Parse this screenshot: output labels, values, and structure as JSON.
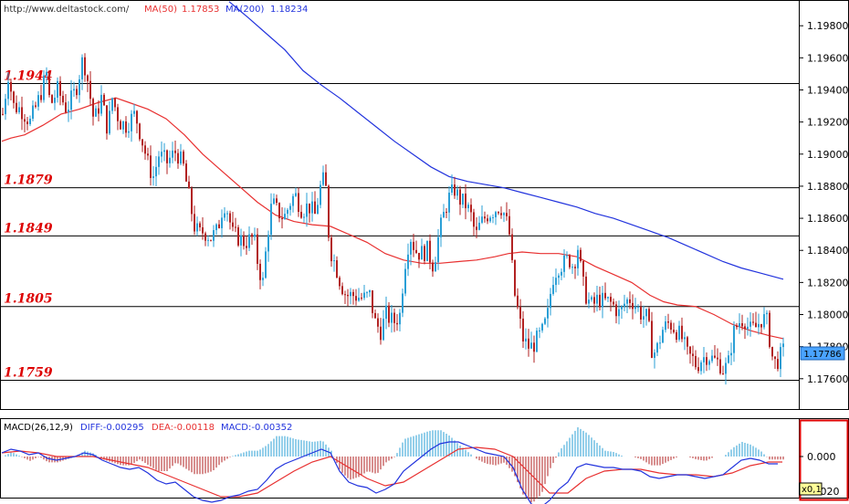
{
  "header": {
    "url": "http://www.deltastock.com/",
    "ma50_label": "MA(50)",
    "ma50_value": "1.17853",
    "ma200_label": "MA(200)",
    "ma200_value": "1.18234"
  },
  "macd_header": {
    "label": "MACD(26,12,9)",
    "diff": "DIFF:-0.00295",
    "dea": "DEA:-0.00118",
    "macd": "MACD:-0.00352"
  },
  "price_axis": {
    "ticks": [
      "1.19800",
      "1.19600",
      "1.19400",
      "1.19200",
      "1.19000",
      "1.18800",
      "1.18600",
      "1.18400",
      "1.18200",
      "1.18000",
      "1.17800",
      "1.17600"
    ],
    "current_price": "1.17786"
  },
  "macd_axis": {
    "ticks": [
      "0.000",
      "-0.020"
    ],
    "corner_label": "x0,1"
  },
  "colors": {
    "bull": "#2a9fd6",
    "bear": "#b22222",
    "ma50": "#e83030",
    "ma200": "#2233dd",
    "level_text": "#dd0000",
    "macd_bar_up": "#2a9fd6",
    "macd_bar_down": "#b22222",
    "diff_line": "#2233dd",
    "dea_line": "#e83030",
    "panel_highlight": "#dd0000"
  },
  "chart_data": {
    "type": "candlestick",
    "ylim": [
      1.1743,
      1.1995
    ],
    "yticks": [
      1.198,
      1.196,
      1.194,
      1.192,
      1.19,
      1.188,
      1.186,
      1.184,
      1.182,
      1.18,
      1.178,
      1.176
    ],
    "current_price": 1.17786,
    "levels": [
      {
        "label": "1.1944",
        "value": 1.1944
      },
      {
        "label": "1.1879",
        "value": 1.1879
      },
      {
        "label": "1.1849",
        "value": 1.1849
      },
      {
        "label": "1.1805",
        "value": 1.1805
      },
      {
        "label": "1.1759",
        "value": 1.1759
      }
    ],
    "close_path": [
      [
        0,
        1.1925
      ],
      [
        6,
        1.195
      ],
      [
        12,
        1.193
      ],
      [
        20,
        1.1928
      ],
      [
        30,
        1.192
      ],
      [
        40,
        1.1935
      ],
      [
        48,
        1.195
      ],
      [
        52,
        1.193
      ],
      [
        60,
        1.194
      ],
      [
        70,
        1.1928
      ],
      [
        80,
        1.194
      ],
      [
        88,
        1.196
      ],
      [
        92,
        1.195
      ],
      [
        100,
        1.192
      ],
      [
        108,
        1.1935
      ],
      [
        115,
        1.1915
      ],
      [
        120,
        1.1935
      ],
      [
        128,
        1.192
      ],
      [
        135,
        1.1918
      ],
      [
        145,
        1.1925
      ],
      [
        152,
        1.191
      ],
      [
        160,
        1.1892
      ],
      [
        166,
        1.1885
      ],
      [
        170,
        1.19
      ],
      [
        180,
        1.1895
      ],
      [
        190,
        1.1902
      ],
      [
        198,
        1.1892
      ],
      [
        205,
        1.187
      ],
      [
        210,
        1.1855
      ],
      [
        215,
        1.185
      ],
      [
        220,
        1.1852
      ],
      [
        228,
        1.1848
      ],
      [
        235,
        1.1852
      ],
      [
        242,
        1.187
      ],
      [
        246,
        1.1865
      ],
      [
        252,
        1.185
      ],
      [
        258,
        1.1848
      ],
      [
        265,
        1.1845
      ],
      [
        275,
        1.1848
      ],
      [
        280,
        1.183
      ],
      [
        285,
        1.182
      ],
      [
        290,
        1.185
      ],
      [
        295,
        1.187
      ],
      [
        300,
        1.1865
      ],
      [
        308,
        1.186
      ],
      [
        315,
        1.187
      ],
      [
        320,
        1.1875
      ],
      [
        328,
        1.1865
      ],
      [
        335,
        1.1868
      ],
      [
        342,
        1.1862
      ],
      [
        350,
        1.1885
      ],
      [
        354,
        1.1878
      ],
      [
        358,
        1.1842
      ],
      [
        365,
        1.183
      ],
      [
        370,
        1.182
      ],
      [
        376,
        1.1812
      ],
      [
        385,
        1.1812
      ],
      [
        395,
        1.181
      ],
      [
        402,
        1.1812
      ],
      [
        408,
        1.1795
      ],
      [
        414,
        1.179
      ],
      [
        420,
        1.18
      ],
      [
        428,
        1.1795
      ],
      [
        435,
        1.18
      ],
      [
        440,
        1.183
      ],
      [
        446,
        1.185
      ],
      [
        452,
        1.184
      ],
      [
        458,
        1.1838
      ],
      [
        465,
        1.184
      ],
      [
        472,
        1.183
      ],
      [
        476,
        1.1845
      ],
      [
        482,
        1.186
      ],
      [
        488,
        1.1872
      ],
      [
        495,
        1.1878
      ],
      [
        500,
        1.1872
      ],
      [
        508,
        1.1868
      ],
      [
        514,
        1.186
      ],
      [
        518,
        1.1848
      ],
      [
        522,
        1.1855
      ],
      [
        530,
        1.1862
      ],
      [
        538,
        1.1865
      ],
      [
        545,
        1.1868
      ],
      [
        550,
        1.1862
      ],
      [
        555,
        1.185
      ],
      [
        560,
        1.1815
      ],
      [
        565,
        1.18
      ],
      [
        570,
        1.1785
      ],
      [
        575,
        1.178
      ],
      [
        580,
        1.178
      ],
      [
        586,
        1.1785
      ],
      [
        592,
        1.179
      ],
      [
        597,
        1.18
      ],
      [
        602,
        1.1822
      ],
      [
        608,
        1.183
      ],
      [
        615,
        1.1832
      ],
      [
        620,
        1.1835
      ],
      [
        625,
        1.183
      ],
      [
        630,
        1.1842
      ],
      [
        635,
        1.182
      ],
      [
        640,
        1.181
      ],
      [
        646,
        1.1805
      ],
      [
        652,
        1.181
      ],
      [
        658,
        1.1808
      ],
      [
        664,
        1.1808
      ],
      [
        670,
        1.1805
      ],
      [
        676,
        1.18
      ],
      [
        682,
        1.1808
      ],
      [
        688,
        1.181
      ],
      [
        694,
        1.1805
      ],
      [
        700,
        1.18
      ],
      [
        706,
        1.1798
      ],
      [
        712,
        1.1775
      ],
      [
        718,
        1.178
      ],
      [
        722,
        1.179
      ],
      [
        730,
        1.1795
      ],
      [
        738,
        1.179
      ],
      [
        744,
        1.1785
      ],
      [
        750,
        1.1775
      ],
      [
        756,
        1.1772
      ],
      [
        760,
        1.1768
      ],
      [
        765,
        1.1772
      ],
      [
        772,
        1.1775
      ],
      [
        778,
        1.1772
      ],
      [
        785,
        1.177
      ],
      [
        790,
        1.1765
      ],
      [
        795,
        1.177
      ],
      [
        800,
        1.1788
      ],
      [
        806,
        1.1795
      ],
      [
        812,
        1.1798
      ],
      [
        818,
        1.179
      ],
      [
        825,
        1.1792
      ],
      [
        832,
        1.1798
      ],
      [
        838,
        1.1795
      ],
      [
        842,
        1.1775
      ],
      [
        846,
        1.177
      ],
      [
        850,
        1.1772
      ],
      [
        856,
        1.1778
      ]
    ],
    "ma50_path": [
      [
        0,
        1.1908
      ],
      [
        10,
        1.191
      ],
      [
        25,
        1.1912
      ],
      [
        45,
        1.1918
      ],
      [
        65,
        1.1925
      ],
      [
        85,
        1.1928
      ],
      [
        105,
        1.1932
      ],
      [
        125,
        1.1935
      ],
      [
        140,
        1.1932
      ],
      [
        160,
        1.1928
      ],
      [
        180,
        1.1922
      ],
      [
        200,
        1.1912
      ],
      [
        220,
        1.19
      ],
      [
        240,
        1.189
      ],
      [
        260,
        1.188
      ],
      [
        280,
        1.187
      ],
      [
        300,
        1.1862
      ],
      [
        320,
        1.1858
      ],
      [
        340,
        1.1856
      ],
      [
        360,
        1.1855
      ],
      [
        380,
        1.185
      ],
      [
        400,
        1.1845
      ],
      [
        420,
        1.1838
      ],
      [
        440,
        1.1834
      ],
      [
        460,
        1.1832
      ],
      [
        480,
        1.1832
      ],
      [
        500,
        1.1833
      ],
      [
        520,
        1.1834
      ],
      [
        540,
        1.1836
      ],
      [
        555,
        1.1838
      ],
      [
        570,
        1.1839
      ],
      [
        590,
        1.1838
      ],
      [
        610,
        1.1838
      ],
      [
        630,
        1.1836
      ],
      [
        650,
        1.183
      ],
      [
        670,
        1.1825
      ],
      [
        690,
        1.182
      ],
      [
        710,
        1.1812
      ],
      [
        725,
        1.1808
      ],
      [
        740,
        1.1806
      ],
      [
        760,
        1.1805
      ],
      [
        780,
        1.18
      ],
      [
        800,
        1.1794
      ],
      [
        820,
        1.179
      ],
      [
        840,
        1.1787
      ],
      [
        856,
        1.1785
      ]
    ],
    "ma200_path": [
      [
        249,
        1.1995
      ],
      [
        270,
        1.1985
      ],
      [
        290,
        1.1975
      ],
      [
        310,
        1.1965
      ],
      [
        330,
        1.1952
      ],
      [
        350,
        1.1943
      ],
      [
        370,
        1.1935
      ],
      [
        390,
        1.1926
      ],
      [
        410,
        1.1917
      ],
      [
        430,
        1.1908
      ],
      [
        450,
        1.19
      ],
      [
        470,
        1.1892
      ],
      [
        490,
        1.1886
      ],
      [
        510,
        1.1883
      ],
      [
        530,
        1.1881
      ],
      [
        550,
        1.1879
      ],
      [
        570,
        1.1876
      ],
      [
        590,
        1.1873
      ],
      [
        610,
        1.187
      ],
      [
        630,
        1.1867
      ],
      [
        650,
        1.1863
      ],
      [
        670,
        1.186
      ],
      [
        690,
        1.1856
      ],
      [
        710,
        1.1852
      ],
      [
        730,
        1.1848
      ],
      [
        750,
        1.1843
      ],
      [
        770,
        1.1838
      ],
      [
        790,
        1.1833
      ],
      [
        810,
        1.1829
      ],
      [
        830,
        1.1826
      ],
      [
        856,
        1.1822
      ]
    ],
    "macd": {
      "ylim": [
        -0.03,
        0.012
      ],
      "diff_path": [
        [
          0,
          0.002
        ],
        [
          10,
          0.004
        ],
        [
          20,
          0.003
        ],
        [
          30,
          0.001
        ],
        [
          40,
          0.002
        ],
        [
          50,
          -0.001
        ],
        [
          60,
          -0.002
        ],
        [
          70,
          -0.001
        ],
        [
          80,
          0.0
        ],
        [
          90,
          0.002
        ],
        [
          100,
          0.001
        ],
        [
          110,
          -0.002
        ],
        [
          120,
          -0.004
        ],
        [
          130,
          -0.006
        ],
        [
          140,
          -0.007
        ],
        [
          150,
          -0.006
        ],
        [
          160,
          -0.009
        ],
        [
          170,
          -0.013
        ],
        [
          180,
          -0.015
        ],
        [
          190,
          -0.014
        ],
        [
          200,
          -0.018
        ],
        [
          210,
          -0.022
        ],
        [
          220,
          -0.024
        ],
        [
          230,
          -0.025
        ],
        [
          240,
          -0.024
        ],
        [
          250,
          -0.022
        ],
        [
          260,
          -0.021
        ],
        [
          270,
          -0.019
        ],
        [
          280,
          -0.018
        ],
        [
          290,
          -0.013
        ],
        [
          300,
          -0.007
        ],
        [
          310,
          -0.004
        ],
        [
          320,
          -0.002
        ],
        [
          330,
          0.0
        ],
        [
          340,
          0.002
        ],
        [
          350,
          0.004
        ],
        [
          360,
          0.002
        ],
        [
          370,
          -0.008
        ],
        [
          380,
          -0.014
        ],
        [
          390,
          -0.016
        ],
        [
          400,
          -0.017
        ],
        [
          410,
          -0.02
        ],
        [
          420,
          -0.018
        ],
        [
          430,
          -0.015
        ],
        [
          440,
          -0.008
        ],
        [
          450,
          -0.004
        ],
        [
          460,
          0.0
        ],
        [
          470,
          0.004
        ],
        [
          480,
          0.007
        ],
        [
          490,
          0.008
        ],
        [
          500,
          0.008
        ],
        [
          510,
          0.006
        ],
        [
          520,
          0.004
        ],
        [
          530,
          0.002
        ],
        [
          540,
          0.001
        ],
        [
          550,
          0.0
        ],
        [
          560,
          -0.006
        ],
        [
          570,
          -0.018
        ],
        [
          580,
          -0.026
        ],
        [
          590,
          -0.028
        ],
        [
          600,
          -0.024
        ],
        [
          610,
          -0.018
        ],
        [
          620,
          -0.014
        ],
        [
          630,
          -0.006
        ],
        [
          640,
          -0.004
        ],
        [
          650,
          -0.005
        ],
        [
          660,
          -0.006
        ],
        [
          670,
          -0.006
        ],
        [
          680,
          -0.007
        ],
        [
          690,
          -0.007
        ],
        [
          700,
          -0.008
        ],
        [
          710,
          -0.011
        ],
        [
          720,
          -0.012
        ],
        [
          730,
          -0.011
        ],
        [
          740,
          -0.01
        ],
        [
          750,
          -0.01
        ],
        [
          760,
          -0.011
        ],
        [
          770,
          -0.012
        ],
        [
          780,
          -0.011
        ],
        [
          790,
          -0.01
        ],
        [
          800,
          -0.006
        ],
        [
          810,
          -0.002
        ],
        [
          820,
          -0.001
        ],
        [
          830,
          -0.002
        ],
        [
          840,
          -0.004
        ],
        [
          850,
          -0.004
        ]
      ],
      "dea_path": [
        [
          0,
          0.002
        ],
        [
          20,
          0.003
        ],
        [
          40,
          0.002
        ],
        [
          60,
          0.0
        ],
        [
          80,
          0.0
        ],
        [
          100,
          0.0
        ],
        [
          120,
          -0.002
        ],
        [
          140,
          -0.004
        ],
        [
          160,
          -0.006
        ],
        [
          180,
          -0.01
        ],
        [
          200,
          -0.014
        ],
        [
          220,
          -0.018
        ],
        [
          240,
          -0.022
        ],
        [
          260,
          -0.022
        ],
        [
          280,
          -0.02
        ],
        [
          300,
          -0.014
        ],
        [
          320,
          -0.008
        ],
        [
          340,
          -0.003
        ],
        [
          360,
          0.0
        ],
        [
          380,
          -0.006
        ],
        [
          400,
          -0.012
        ],
        [
          420,
          -0.016
        ],
        [
          440,
          -0.014
        ],
        [
          460,
          -0.008
        ],
        [
          480,
          -0.002
        ],
        [
          500,
          0.004
        ],
        [
          520,
          0.005
        ],
        [
          540,
          0.004
        ],
        [
          560,
          0.0
        ],
        [
          580,
          -0.01
        ],
        [
          600,
          -0.02
        ],
        [
          620,
          -0.02
        ],
        [
          640,
          -0.012
        ],
        [
          660,
          -0.008
        ],
        [
          680,
          -0.007
        ],
        [
          700,
          -0.007
        ],
        [
          720,
          -0.009
        ],
        [
          740,
          -0.01
        ],
        [
          760,
          -0.01
        ],
        [
          780,
          -0.011
        ],
        [
          800,
          -0.009
        ],
        [
          820,
          -0.005
        ],
        [
          840,
          -0.003
        ],
        [
          855,
          -0.003
        ]
      ]
    }
  }
}
